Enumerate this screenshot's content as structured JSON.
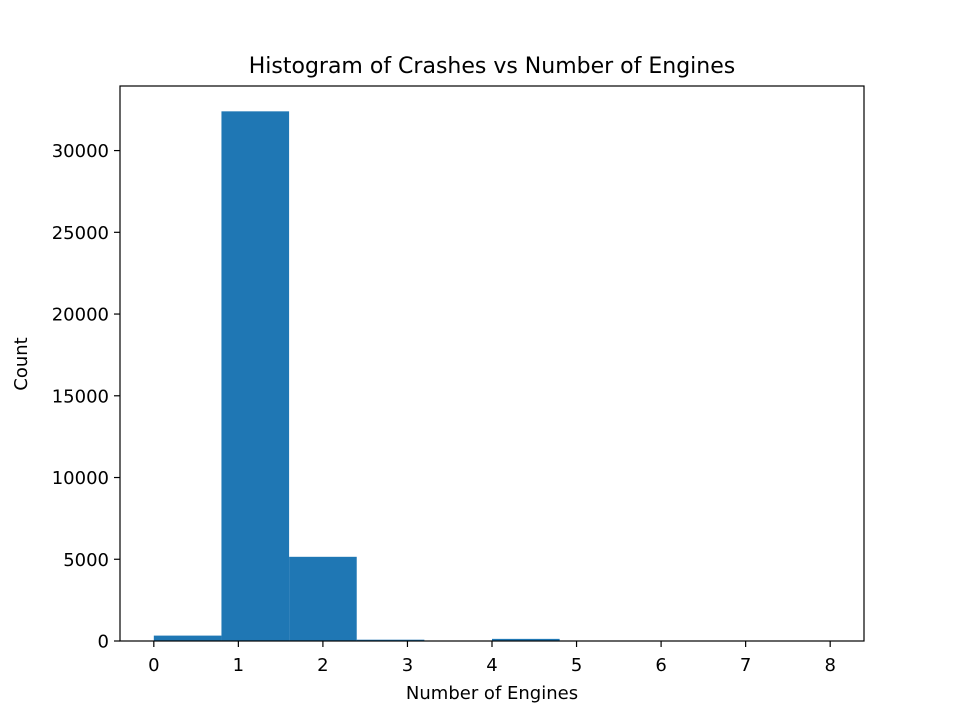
{
  "chart_data": {
    "type": "bar",
    "title": "Histogram of Crashes vs Number of Engines",
    "xlabel": "Number of Engines",
    "ylabel": "Count",
    "xlim": [
      -0.4,
      8.4
    ],
    "ylim": [
      0,
      33950
    ],
    "xticks": [
      0,
      1,
      2,
      3,
      4,
      5,
      6,
      7,
      8
    ],
    "xtick_labels": [
      "0",
      "1",
      "2",
      "3",
      "4",
      "5",
      "6",
      "7",
      "8"
    ],
    "yticks": [
      0,
      5000,
      10000,
      15000,
      20000,
      25000,
      30000
    ],
    "ytick_labels": [
      "0",
      "5000",
      "10000",
      "15000",
      "20000",
      "25000",
      "30000"
    ],
    "bins": [
      {
        "x0": 0.0,
        "x1": 0.8,
        "value": 330
      },
      {
        "x0": 0.8,
        "x1": 1.6,
        "value": 32400
      },
      {
        "x0": 1.6,
        "x1": 2.4,
        "value": 5150
      },
      {
        "x0": 2.4,
        "x1": 3.2,
        "value": 80
      },
      {
        "x0": 3.2,
        "x1": 4.0,
        "value": 0
      },
      {
        "x0": 4.0,
        "x1": 4.8,
        "value": 130
      },
      {
        "x0": 4.8,
        "x1": 5.6,
        "value": 2
      },
      {
        "x0": 5.6,
        "x1": 6.4,
        "value": 1
      },
      {
        "x0": 6.4,
        "x1": 7.2,
        "value": 0
      },
      {
        "x0": 7.2,
        "x1": 8.0,
        "value": 1
      }
    ],
    "bar_color": "#1f77b4",
    "grid": false,
    "legend": "none"
  }
}
